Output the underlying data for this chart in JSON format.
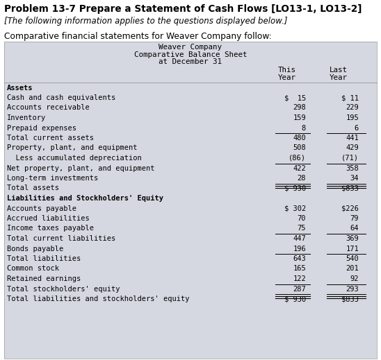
{
  "title_bold": "Problem 13-7 Prepare a Statement of Cash Flows [LO13-1, LO13-2]",
  "subtitle_italic": "[The following information applies to the questions displayed below.]",
  "intro": "Comparative financial statements for Weaver Company follow:",
  "table_header_line1": "Weaver Company",
  "table_header_line2": "Comparative Balance Sheet",
  "table_header_line3": "at December 31",
  "table_bg": "#d5d8e0",
  "rows": [
    {
      "label": "Assets",
      "bold": true,
      "this_val": "",
      "last_val": "",
      "top_line": false,
      "double_bottom": false
    },
    {
      "label": "Cash and cash equivalents",
      "bold": false,
      "this_val": "$  15",
      "last_val": "$ 11",
      "top_line": false,
      "double_bottom": false
    },
    {
      "label": "Accounts receivable",
      "bold": false,
      "this_val": "298",
      "last_val": "229",
      "top_line": false,
      "double_bottom": false
    },
    {
      "label": "Inventory",
      "bold": false,
      "this_val": "159",
      "last_val": "195",
      "top_line": false,
      "double_bottom": false
    },
    {
      "label": "Prepaid expenses",
      "bold": false,
      "this_val": "8",
      "last_val": "6",
      "top_line": false,
      "double_bottom": false
    },
    {
      "label": "Total current assets",
      "bold": false,
      "this_val": "480",
      "last_val": "441",
      "top_line": true,
      "double_bottom": false
    },
    {
      "label": "Property, plant, and equipment",
      "bold": false,
      "this_val": "508",
      "last_val": "429",
      "top_line": false,
      "double_bottom": false
    },
    {
      "label": "  Less accumulated depreciation",
      "bold": false,
      "this_val": "(86)",
      "last_val": "(71)",
      "top_line": false,
      "double_bottom": false
    },
    {
      "label": "Net property, plant, and equipment",
      "bold": false,
      "this_val": "422",
      "last_val": "358",
      "top_line": true,
      "double_bottom": false
    },
    {
      "label": "Long-term investments",
      "bold": false,
      "this_val": "28",
      "last_val": "34",
      "top_line": false,
      "double_bottom": false
    },
    {
      "label": "Total assets",
      "bold": false,
      "this_val": "$ 930",
      "last_val": "$833",
      "top_line": true,
      "double_bottom": true
    },
    {
      "label": "Liabilities and Stockholders' Equity",
      "bold": true,
      "this_val": "",
      "last_val": "",
      "top_line": false,
      "double_bottom": false
    },
    {
      "label": "Accounts payable",
      "bold": false,
      "this_val": "$ 302",
      "last_val": "$226",
      "top_line": false,
      "double_bottom": false
    },
    {
      "label": "Accrued liabilities",
      "bold": false,
      "this_val": "70",
      "last_val": "79",
      "top_line": false,
      "double_bottom": false
    },
    {
      "label": "Income taxes payable",
      "bold": false,
      "this_val": "75",
      "last_val": "64",
      "top_line": false,
      "double_bottom": false
    },
    {
      "label": "Total current liabilities",
      "bold": false,
      "this_val": "447",
      "last_val": "369",
      "top_line": true,
      "double_bottom": false
    },
    {
      "label": "Bonds payable",
      "bold": false,
      "this_val": "196",
      "last_val": "171",
      "top_line": false,
      "double_bottom": false
    },
    {
      "label": "Total liabilities",
      "bold": false,
      "this_val": "643",
      "last_val": "540",
      "top_line": true,
      "double_bottom": false
    },
    {
      "label": "Common stock",
      "bold": false,
      "this_val": "165",
      "last_val": "201",
      "top_line": false,
      "double_bottom": false
    },
    {
      "label": "Retained earnings",
      "bold": false,
      "this_val": "122",
      "last_val": "92",
      "top_line": false,
      "double_bottom": false
    },
    {
      "label": "Total stockholders' equity",
      "bold": false,
      "this_val": "287",
      "last_val": "293",
      "top_line": true,
      "double_bottom": false
    },
    {
      "label": "Total liabilities and stockholders' equity",
      "bold": false,
      "this_val": "$ 930",
      "last_val": "$833",
      "top_line": true,
      "double_bottom": true
    }
  ]
}
